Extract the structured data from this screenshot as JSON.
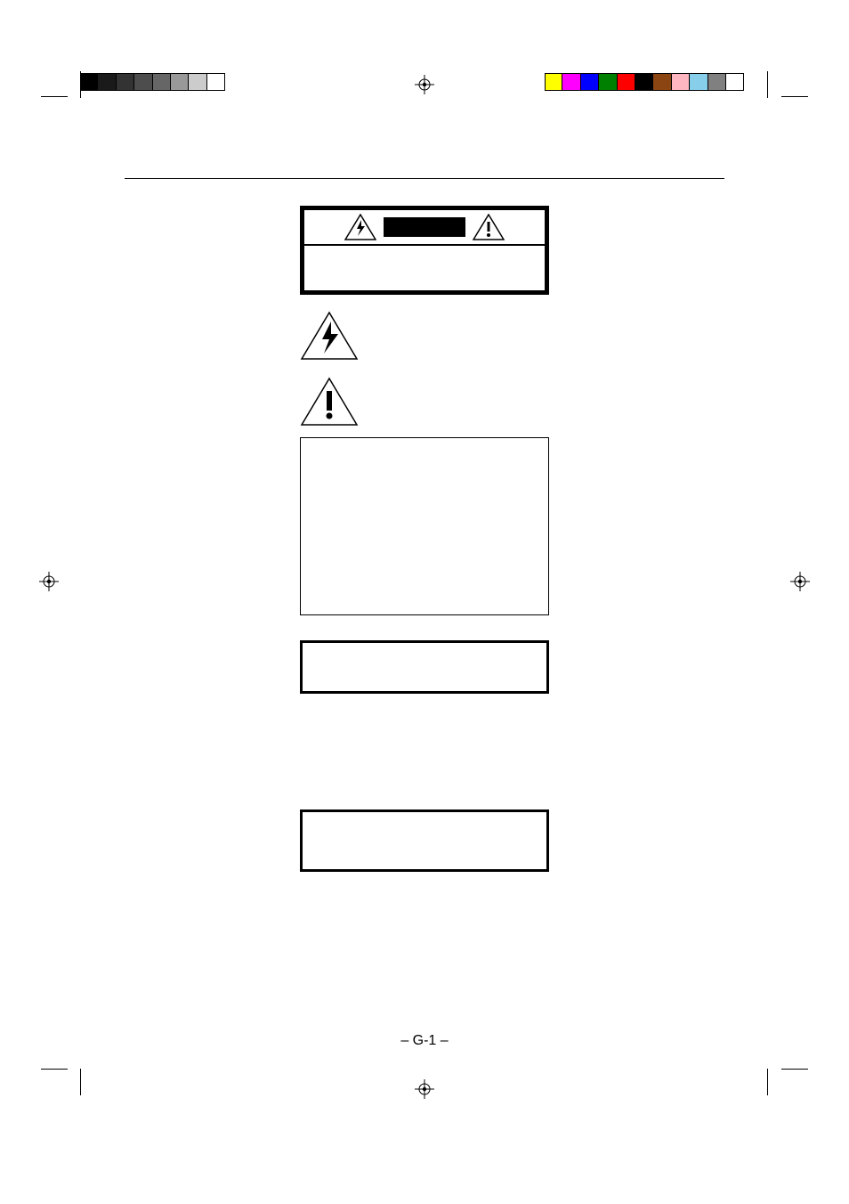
{
  "page": {
    "number": "– G-1 –"
  },
  "crop_marks": {
    "color": "#000000"
  },
  "registration_target": {
    "stroke": "#000000"
  },
  "gray_bar": {
    "swatches": [
      "#000000",
      "#1a1a1a",
      "#333333",
      "#4d4d4d",
      "#666666",
      "#999999",
      "#cccccc",
      "#ffffff"
    ]
  },
  "color_bar": {
    "swatches": [
      "#ffff00",
      "#ff00ff",
      "#0000ff",
      "#008000",
      "#ff0000",
      "#000000",
      "#8b4513",
      "#ffb6c1",
      "#87ceeb",
      "#808080",
      "#ffffff"
    ]
  },
  "caution_box": {
    "border_color": "#000000"
  },
  "icons": {
    "shock_triangle": {
      "stroke": "#000000"
    },
    "exclaim_triangle": {
      "stroke": "#000000"
    }
  }
}
